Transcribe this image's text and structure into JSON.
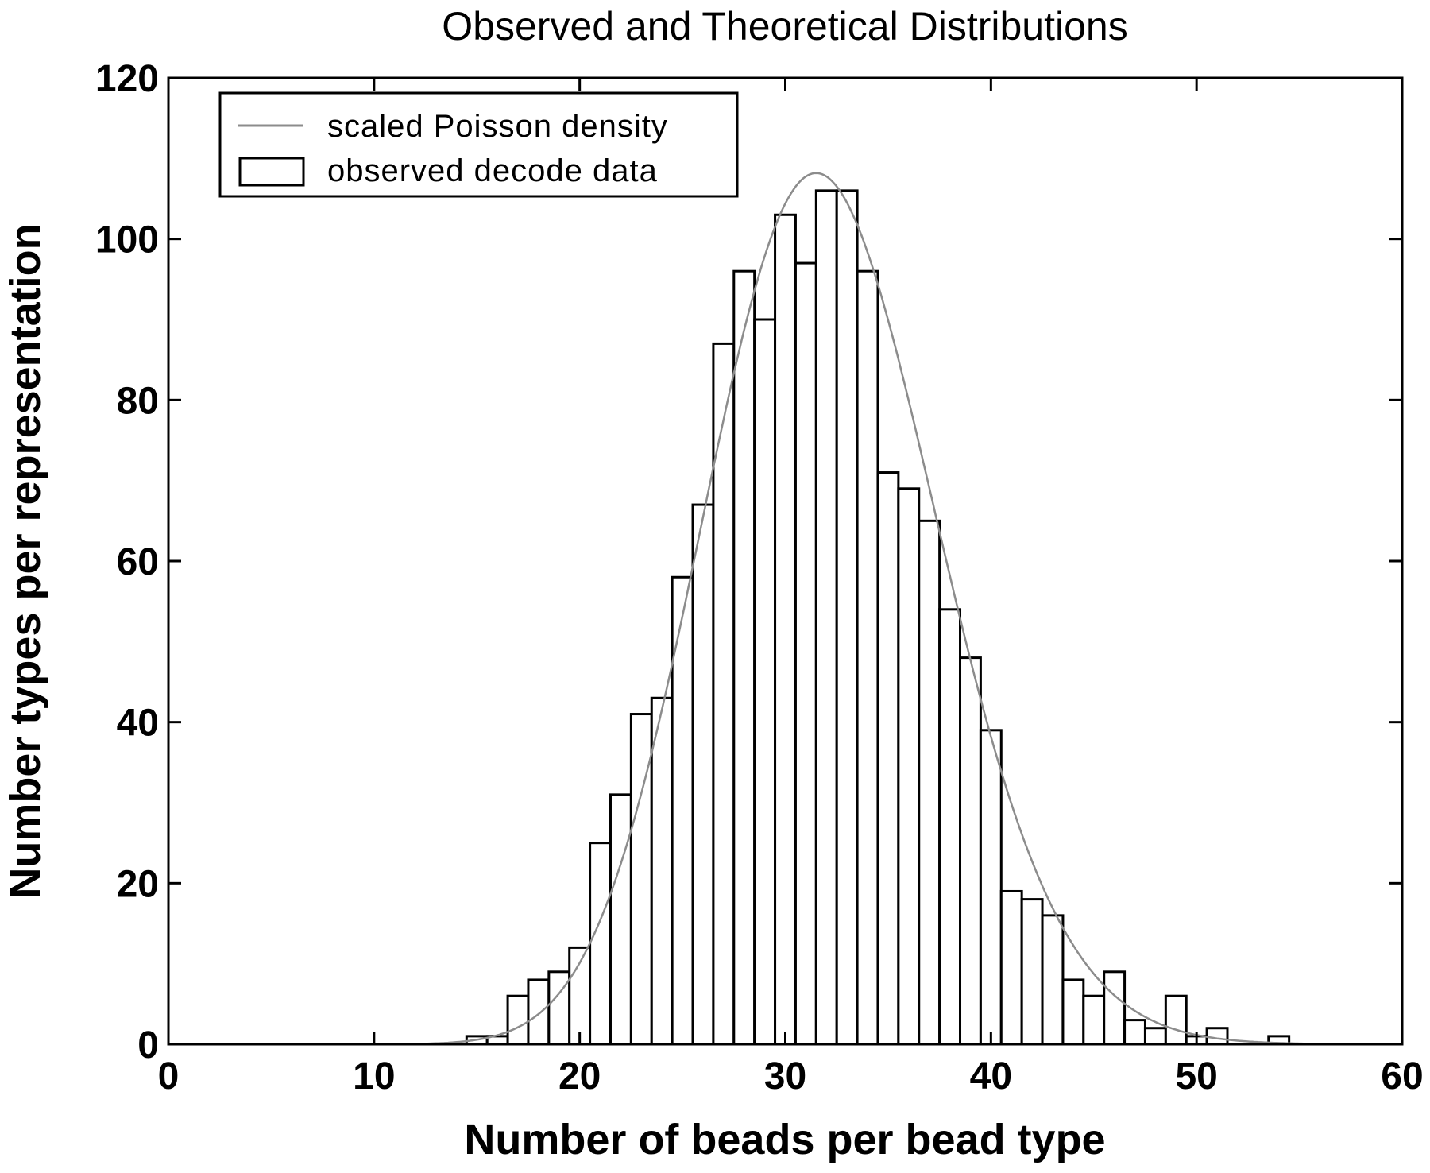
{
  "chart_data": {
    "type": "bar",
    "title": "Observed and Theoretical Distributions",
    "xlabel": "Number of beads per bead type",
    "ylabel": "Number types per representation",
    "xlim": [
      0,
      60
    ],
    "ylim": [
      0,
      120
    ],
    "xticks": [
      0,
      10,
      20,
      30,
      40,
      50,
      60
    ],
    "yticks": [
      0,
      20,
      40,
      60,
      80,
      100,
      120
    ],
    "grid": false,
    "legend_position": "top-left",
    "series": [
      {
        "name": "observed decode data",
        "kind": "histogram",
        "x": [
          15,
          16,
          17,
          18,
          19,
          20,
          21,
          22,
          23,
          24,
          25,
          26,
          27,
          28,
          29,
          30,
          31,
          32,
          33,
          34,
          35,
          36,
          37,
          38,
          39,
          40,
          41,
          42,
          43,
          44,
          45,
          46,
          47,
          48,
          49,
          50,
          51,
          52,
          53,
          54
        ],
        "values": [
          1,
          1,
          6,
          8,
          9,
          12,
          25,
          31,
          41,
          43,
          58,
          67,
          87,
          96,
          90,
          103,
          97,
          106,
          106,
          96,
          71,
          69,
          65,
          54,
          48,
          39,
          19,
          18,
          16,
          8,
          6,
          9,
          3,
          2,
          6,
          1,
          2,
          0,
          0,
          1
        ],
        "color": "#000000"
      },
      {
        "name": "scaled Poisson density",
        "kind": "line",
        "lambda": 32,
        "scale": 1532,
        "x_range": [
          1,
          60
        ],
        "color": "#8c8c8c"
      }
    ]
  }
}
